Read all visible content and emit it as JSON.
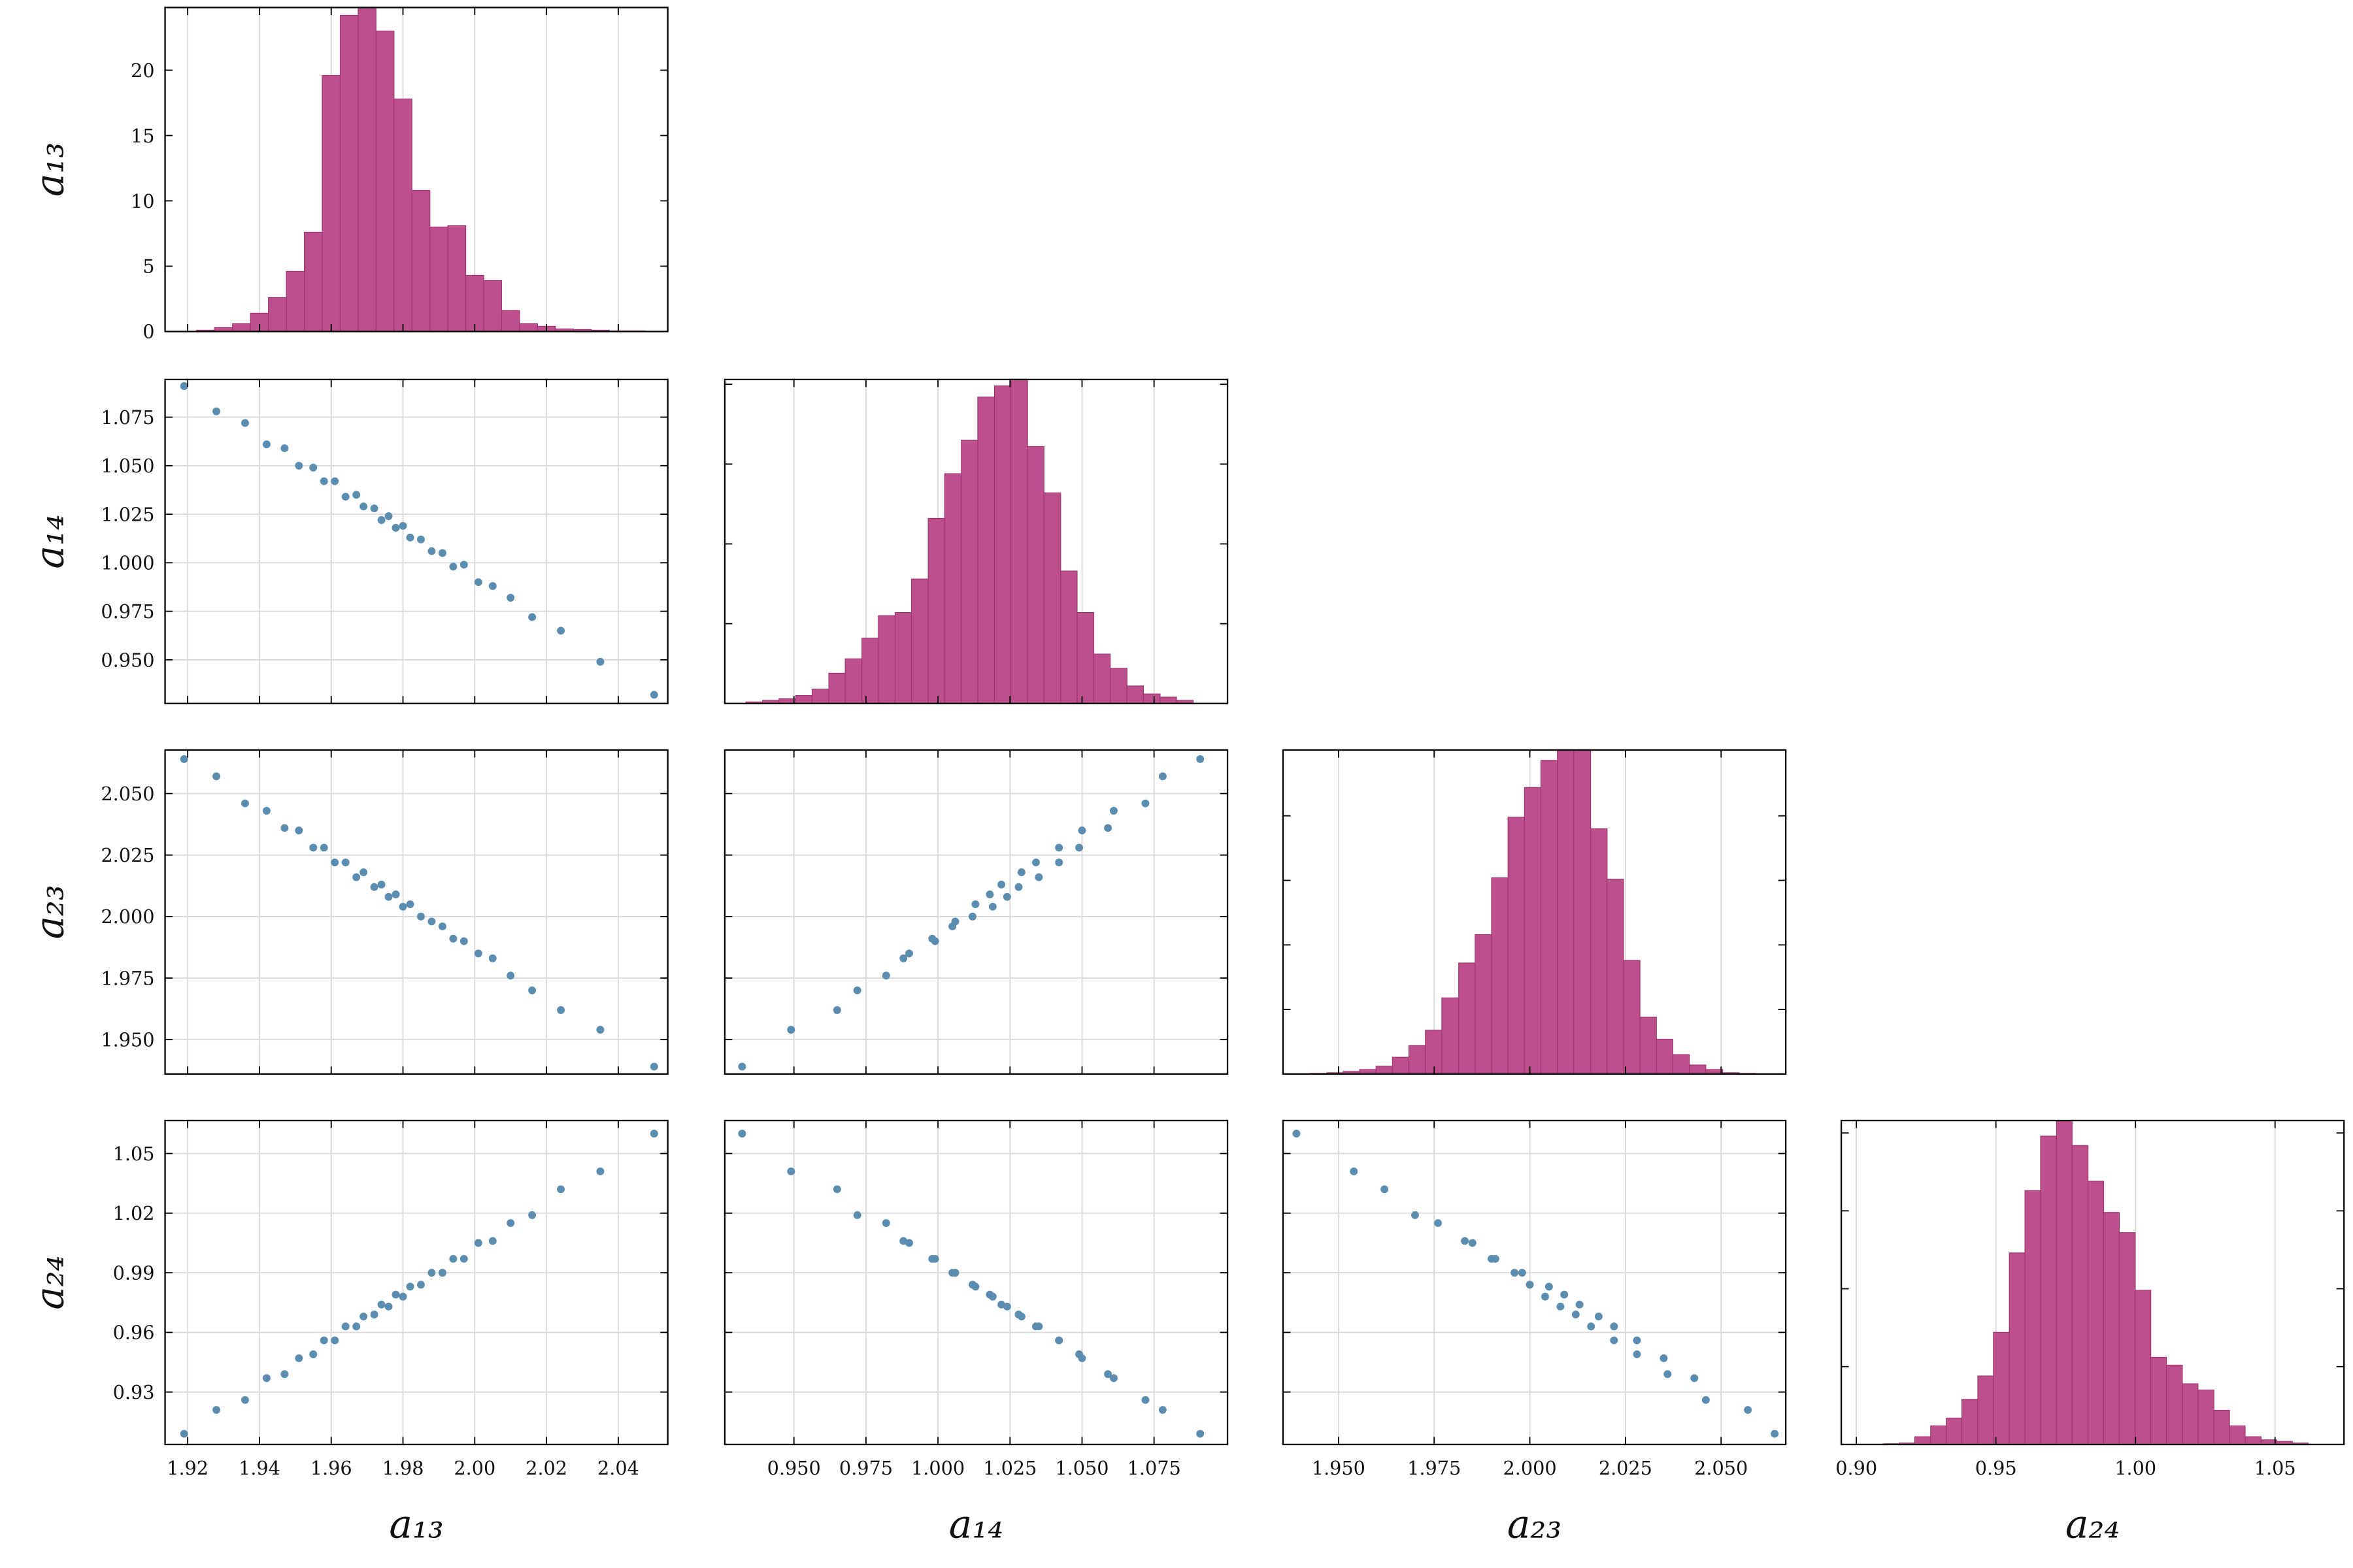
{
  "chart_data": [
    {
      "type": "histogram",
      "ylabel": "a₁₃",
      "color": "#bd4f8c",
      "grid": "x",
      "xtick_labels": false,
      "ytick_labels": true,
      "xlim": [
        1.9137,
        2.0538
      ],
      "ylim": [
        0,
        24.8
      ],
      "xticks": [
        1.92,
        1.94,
        1.96,
        1.98,
        2.0,
        2.02,
        2.04
      ],
      "yticks": [
        0,
        5,
        10,
        15,
        20
      ],
      "bins": [
        1.9225,
        1.9275,
        1.9325,
        1.9375,
        1.9425,
        1.9475,
        1.9525,
        1.9575,
        1.9625,
        1.9675,
        1.9725,
        1.9775,
        1.9825,
        1.9875,
        1.9925,
        1.9975,
        2.0025,
        2.0075,
        2.0125,
        2.0175,
        2.0225,
        2.0275,
        2.0325,
        2.0375,
        2.0425,
        2.0475
      ],
      "values": [
        0.1,
        0.3,
        0.6,
        1.4,
        2.6,
        4.6,
        7.6,
        19.6,
        24.2,
        24.7,
        23.0,
        17.8,
        10.8,
        8.0,
        8.1,
        4.3,
        3.9,
        1.6,
        0.6,
        0.4,
        0.2,
        0.15,
        0.1,
        0.05,
        0.05
      ]
    },
    {
      "type": "scatter",
      "ylabel": "a₁₄",
      "color": "#5b8db0",
      "grid": "both",
      "xtick_labels": false,
      "ytick_labels": true,
      "xlim": [
        1.9137,
        2.0538
      ],
      "ylim": [
        0.9275,
        1.0944
      ],
      "xticks": [
        1.92,
        1.94,
        1.96,
        1.98,
        2.0,
        2.02,
        2.04
      ],
      "yticks": [
        {
          "value": 0.95,
          "label": "0.950"
        },
        0.975,
        {
          "value": 1.0,
          "label": "1.000"
        },
        1.025,
        {
          "value": 1.05,
          "label": "1.050"
        },
        1.075
      ],
      "x": [
        1.919,
        1.928,
        1.936,
        1.942,
        1.947,
        1.951,
        1.955,
        1.958,
        1.961,
        1.964,
        1.967,
        1.969,
        1.972,
        1.974,
        1.976,
        1.978,
        1.98,
        1.982,
        1.985,
        1.988,
        1.991,
        1.994,
        1.997,
        2.001,
        2.005,
        2.01,
        2.016,
        2.024,
        2.035,
        2.05
      ],
      "values": [
        1.091,
        1.078,
        1.072,
        1.061,
        1.059,
        1.05,
        1.049,
        1.042,
        1.042,
        1.034,
        1.035,
        1.029,
        1.028,
        1.022,
        1.024,
        1.018,
        1.019,
        1.013,
        1.012,
        1.006,
        1.005,
        0.998,
        0.999,
        0.99,
        0.988,
        0.982,
        0.972,
        0.965,
        0.949,
        0.932
      ]
    },
    {
      "type": "histogram",
      "color": "#bd4f8c",
      "grid": "x",
      "xtick_labels": false,
      "ytick_labels": false,
      "xlim": [
        0.926,
        1.1005
      ],
      "ylim": [
        0,
        20.3
      ],
      "xticks": [
        0.95,
        0.975,
        1.0,
        1.025,
        1.05,
        1.075
      ],
      "yticks": [
        0,
        5,
        10,
        15,
        20
      ],
      "bins": [
        0.9333,
        0.9391,
        0.9448,
        0.9506,
        0.9563,
        0.9621,
        0.9678,
        0.9736,
        0.9793,
        0.9851,
        0.9908,
        0.9966,
        1.0023,
        1.0081,
        1.0138,
        1.0196,
        1.0253,
        1.0311,
        1.0368,
        1.0426,
        1.0483,
        1.0541,
        1.0598,
        1.0656,
        1.0713,
        1.0771,
        1.0828,
        1.0886
      ],
      "values": [
        0.1,
        0.2,
        0.3,
        0.5,
        0.9,
        1.9,
        2.8,
        4.1,
        5.5,
        5.7,
        7.8,
        11.6,
        14.4,
        16.5,
        19.2,
        19.9,
        20.3,
        16.1,
        13.2,
        8.3,
        5.7,
        3.1,
        2.2,
        1.1,
        0.6,
        0.4,
        0.2
      ]
    },
    {
      "type": "scatter",
      "ylabel": "a₂₃",
      "color": "#5b8db0",
      "grid": "both",
      "xtick_labels": false,
      "ytick_labels": true,
      "xlim": [
        1.9137,
        2.0538
      ],
      "ylim": [
        1.936,
        2.0677
      ],
      "xticks": [
        1.92,
        1.94,
        1.96,
        1.98,
        2.0,
        2.02,
        2.04
      ],
      "yticks": [
        {
          "value": 1.95,
          "label": "1.950"
        },
        1.975,
        {
          "value": 2.0,
          "label": "2.000"
        },
        2.025,
        {
          "value": 2.05,
          "label": "2.050"
        }
      ],
      "x": [
        1.919,
        1.928,
        1.936,
        1.942,
        1.947,
        1.951,
        1.955,
        1.958,
        1.961,
        1.964,
        1.967,
        1.969,
        1.972,
        1.974,
        1.976,
        1.978,
        1.98,
        1.982,
        1.985,
        1.988,
        1.991,
        1.994,
        1.997,
        2.001,
        2.005,
        2.01,
        2.016,
        2.024,
        2.035,
        2.05
      ],
      "values": [
        2.064,
        2.057,
        2.046,
        2.043,
        2.036,
        2.035,
        2.028,
        2.028,
        2.022,
        2.022,
        2.016,
        2.018,
        2.012,
        2.013,
        2.008,
        2.009,
        2.004,
        2.005,
        2.0,
        1.998,
        1.996,
        1.991,
        1.99,
        1.985,
        1.983,
        1.976,
        1.97,
        1.962,
        1.954,
        1.939
      ]
    },
    {
      "type": "scatter",
      "color": "#5b8db0",
      "grid": "both",
      "xtick_labels": false,
      "ytick_labels": false,
      "xlim": [
        0.926,
        1.1005
      ],
      "ylim": [
        1.936,
        2.0677
      ],
      "xticks": [
        0.95,
        0.975,
        1.0,
        1.025,
        1.05,
        1.075
      ],
      "yticks": [
        1.95,
        1.975,
        2.0,
        2.025,
        2.05
      ],
      "x": [
        1.091,
        1.078,
        1.072,
        1.061,
        1.059,
        1.05,
        1.049,
        1.042,
        1.042,
        1.034,
        1.035,
        1.029,
        1.028,
        1.022,
        1.024,
        1.018,
        1.019,
        1.013,
        1.012,
        1.006,
        1.005,
        0.998,
        0.999,
        0.99,
        0.988,
        0.982,
        0.972,
        0.965,
        0.949,
        0.932
      ],
      "values": [
        2.064,
        2.057,
        2.046,
        2.043,
        2.036,
        2.035,
        2.028,
        2.028,
        2.022,
        2.022,
        2.016,
        2.018,
        2.012,
        2.013,
        2.008,
        2.009,
        2.004,
        2.005,
        2.0,
        1.998,
        1.996,
        1.991,
        1.99,
        1.985,
        1.983,
        1.976,
        1.97,
        1.962,
        1.954,
        1.939
      ]
    },
    {
      "type": "histogram",
      "color": "#bd4f8c",
      "grid": "x",
      "xtick_labels": false,
      "ytick_labels": false,
      "xlim": [
        1.9355,
        2.0669
      ],
      "ylim": [
        0,
        25.1
      ],
      "xticks": [
        1.95,
        1.975,
        2.0,
        2.025,
        2.05
      ],
      "yticks": [
        0,
        5,
        10,
        15,
        20
      ],
      "bins": [
        1.9425,
        1.9469,
        1.9512,
        1.9555,
        1.9598,
        1.9641,
        1.9684,
        1.9727,
        1.977,
        1.9814,
        1.9857,
        1.99,
        1.9943,
        1.9986,
        2.0029,
        2.0072,
        2.0115,
        2.0159,
        2.0202,
        2.0245,
        2.0288,
        2.0331,
        2.0374,
        2.0417,
        2.046,
        2.0504,
        2.0547,
        2.059
      ],
      "values": [
        0.05,
        0.1,
        0.2,
        0.35,
        0.6,
        1.3,
        2.2,
        3.4,
        5.9,
        8.6,
        10.8,
        15.2,
        19.9,
        22.2,
        24.3,
        25.1,
        25.1,
        19.0,
        15.1,
        8.8,
        4.4,
        2.7,
        1.5,
        0.7,
        0.35,
        0.1,
        0.05
      ]
    },
    {
      "type": "scatter",
      "ylabel": "a₂₄",
      "xlabel": "a₁₃",
      "color": "#5b8db0",
      "grid": "both",
      "xtick_labels": true,
      "ytick_labels": true,
      "xlim": [
        1.9137,
        2.0538
      ],
      "ylim": [
        0.9036,
        1.0666
      ],
      "xticks": [
        1.92,
        1.94,
        1.96,
        1.98,
        {
          "value": 2.0,
          "label": "2.00"
        },
        2.02,
        2.04
      ],
      "yticks": [
        0.93,
        0.96,
        0.99,
        1.02,
        1.05
      ],
      "x": [
        1.919,
        1.928,
        1.936,
        1.942,
        1.947,
        1.951,
        1.955,
        1.958,
        1.961,
        1.964,
        1.967,
        1.969,
        1.972,
        1.974,
        1.976,
        1.978,
        1.98,
        1.982,
        1.985,
        1.988,
        1.991,
        1.994,
        1.997,
        2.001,
        2.005,
        2.01,
        2.016,
        2.024,
        2.035,
        2.05
      ],
      "values": [
        0.909,
        0.921,
        0.926,
        0.937,
        0.939,
        0.947,
        0.949,
        0.956,
        0.956,
        0.963,
        0.963,
        0.968,
        0.969,
        0.974,
        0.973,
        0.979,
        0.978,
        0.983,
        0.984,
        0.99,
        0.99,
        0.997,
        0.997,
        1.005,
        1.006,
        1.015,
        1.019,
        1.032,
        1.041,
        1.06
      ]
    },
    {
      "type": "scatter",
      "xlabel": "a₁₄",
      "color": "#5b8db0",
      "grid": "both",
      "xtick_labels": true,
      "ytick_labels": false,
      "xlim": [
        0.926,
        1.1005
      ],
      "ylim": [
        0.9036,
        1.0666
      ],
      "xticks": [
        {
          "value": 0.95,
          "label": "0.950"
        },
        0.975,
        {
          "value": 1.0,
          "label": "1.000"
        },
        1.025,
        {
          "value": 1.05,
          "label": "1.050"
        },
        1.075
      ],
      "yticks": [
        0.93,
        0.96,
        0.99,
        1.02,
        1.05
      ],
      "x": [
        1.091,
        1.078,
        1.072,
        1.061,
        1.059,
        1.05,
        1.049,
        1.042,
        1.042,
        1.034,
        1.035,
        1.029,
        1.028,
        1.022,
        1.024,
        1.018,
        1.019,
        1.013,
        1.012,
        1.006,
        1.005,
        0.998,
        0.999,
        0.99,
        0.988,
        0.982,
        0.972,
        0.965,
        0.949,
        0.932
      ],
      "values": [
        0.909,
        0.921,
        0.926,
        0.937,
        0.939,
        0.947,
        0.949,
        0.956,
        0.956,
        0.963,
        0.963,
        0.968,
        0.969,
        0.974,
        0.973,
        0.979,
        0.978,
        0.983,
        0.984,
        0.99,
        0.99,
        0.997,
        0.997,
        1.005,
        1.006,
        1.015,
        1.019,
        1.032,
        1.041,
        1.06
      ]
    },
    {
      "type": "scatter",
      "xlabel": "a₂₃",
      "color": "#5b8db0",
      "grid": "both",
      "xtick_labels": true,
      "ytick_labels": false,
      "xlim": [
        1.9355,
        2.0669
      ],
      "ylim": [
        0.9036,
        1.0666
      ],
      "xticks": [
        {
          "value": 1.95,
          "label": "1.950"
        },
        1.975,
        {
          "value": 2.0,
          "label": "2.000"
        },
        2.025,
        {
          "value": 2.05,
          "label": "2.050"
        }
      ],
      "yticks": [
        0.93,
        0.96,
        0.99,
        1.02,
        1.05
      ],
      "x": [
        2.064,
        2.057,
        2.046,
        2.043,
        2.036,
        2.035,
        2.028,
        2.028,
        2.022,
        2.022,
        2.016,
        2.018,
        2.012,
        2.013,
        2.008,
        2.009,
        2.004,
        2.005,
        2.0,
        1.998,
        1.996,
        1.991,
        1.99,
        1.985,
        1.983,
        1.976,
        1.97,
        1.962,
        1.954,
        1.939
      ],
      "values": [
        0.909,
        0.921,
        0.926,
        0.937,
        0.939,
        0.947,
        0.949,
        0.956,
        0.956,
        0.963,
        0.963,
        0.968,
        0.969,
        0.974,
        0.973,
        0.979,
        0.978,
        0.983,
        0.984,
        0.99,
        0.99,
        0.997,
        0.997,
        1.005,
        1.006,
        1.015,
        1.019,
        1.032,
        1.041,
        1.06
      ]
    },
    {
      "type": "histogram",
      "xlabel": "a₂₄",
      "color": "#bd4f8c",
      "grid": "x",
      "xtick_labels": true,
      "ytick_labels": false,
      "xlim": [
        0.8946,
        1.0747
      ],
      "ylim": [
        0,
        20.8
      ],
      "xticks": [
        {
          "value": 0.9,
          "label": "0.90"
        },
        0.95,
        {
          "value": 1.0,
          "label": "1.00"
        },
        1.05
      ],
      "yticks": [
        0,
        5,
        10,
        15,
        20
      ],
      "bins": [
        0.9097,
        0.9153,
        0.9209,
        0.9266,
        0.9322,
        0.9378,
        0.9435,
        0.9491,
        0.9548,
        0.9604,
        0.966,
        0.9717,
        0.9773,
        0.983,
        0.9886,
        0.9942,
        0.9999,
        1.0055,
        1.0111,
        1.0168,
        1.0224,
        1.0281,
        1.0337,
        1.0393,
        1.045,
        1.0506,
        1.0562,
        1.0619
      ],
      "values": [
        0.05,
        0.1,
        0.5,
        1.2,
        1.7,
        2.9,
        4.4,
        7.2,
        12.3,
        16.3,
        19.8,
        20.8,
        19.2,
        16.9,
        14.9,
        13.6,
        9.9,
        5.6,
        5.1,
        3.9,
        3.5,
        2.2,
        1.2,
        0.5,
        0.3,
        0.2,
        0.1
      ]
    }
  ]
}
